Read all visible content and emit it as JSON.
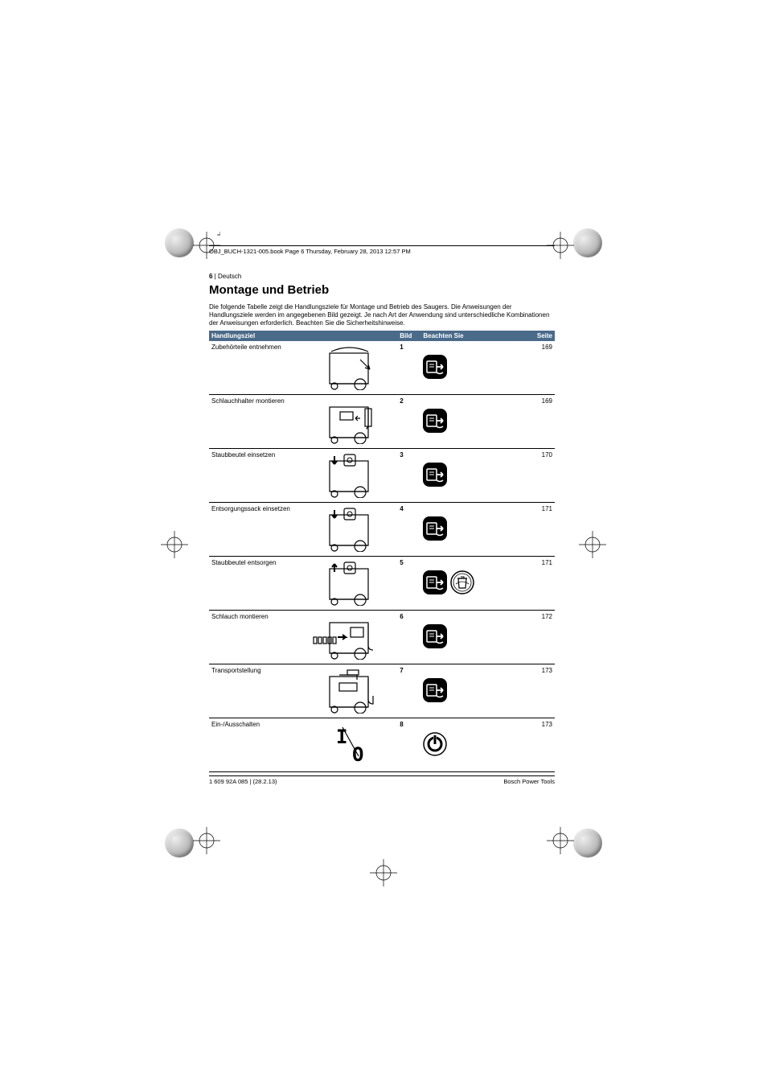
{
  "header": {
    "book_line": "OBJ_BUCH-1321-005.book  Page 6  Thursday, February 28, 2013  12:57 PM"
  },
  "page": {
    "number": "6",
    "separator": " | ",
    "language": "Deutsch"
  },
  "title": "Montage und Betrieb",
  "intro": "Die folgende Tabelle zeigt die Handlungsziele für Montage und Betrieb des Saugers. Die Anweisungen der Handlungsziele werden im angegebenen Bild gezeigt. Je nach Art der Anwendung sind unterschiedliche Kombinationen der Anweisungen erforderlich. Beachten Sie die Sicherheitshinweise.",
  "table": {
    "headers": {
      "goal": "Handlungsziel",
      "image": "Bild",
      "observe": "Beachten Sie",
      "page": "Seite"
    },
    "colors": {
      "header_bg": "#4a6a8a",
      "header_fg": "#ffffff"
    },
    "rows": [
      {
        "goal": "Zubehörteile entnehmen",
        "image": "1",
        "page": "169",
        "icons": [
          "manual"
        ],
        "schematic": "vac_lid_arrow"
      },
      {
        "goal": "Schlauchhalter montieren",
        "image": "2",
        "page": "169",
        "icons": [
          "manual"
        ],
        "schematic": "vac_holder"
      },
      {
        "goal": "Staubbeutel einsetzen",
        "image": "3",
        "page": "170",
        "icons": [
          "manual"
        ],
        "schematic": "vac_bag_down"
      },
      {
        "goal": "Entsorgungssack einsetzen",
        "image": "4",
        "page": "171",
        "icons": [
          "manual"
        ],
        "schematic": "vac_bag_down"
      },
      {
        "goal": "Staubbeutel entsorgen",
        "image": "5",
        "page": "171",
        "icons": [
          "manual",
          "dispose"
        ],
        "schematic": "vac_bag_up"
      },
      {
        "goal": "Schlauch montieren",
        "image": "6",
        "page": "172",
        "icons": [
          "manual"
        ],
        "schematic": "vac_hose"
      },
      {
        "goal": "Transportstellung",
        "image": "7",
        "page": "173",
        "icons": [
          "manual"
        ],
        "schematic": "vac_transport"
      },
      {
        "goal": "Ein-/Ausschalten",
        "image": "8",
        "page": "173",
        "icons": [
          "power"
        ],
        "schematic": "switch_io"
      }
    ]
  },
  "footer": {
    "left": "1 609 92A 085 | (28.2.13)",
    "right": "Bosch Power Tools"
  }
}
